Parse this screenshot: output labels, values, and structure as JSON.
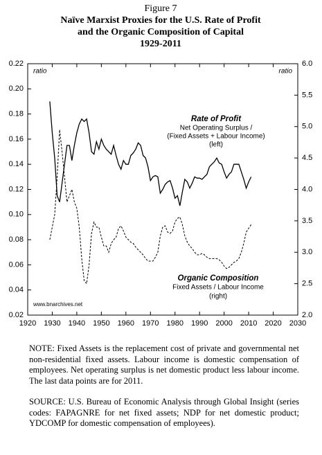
{
  "chart_data": {
    "type": "line",
    "figure_label": "Figure 7",
    "title": [
      "Naïve Marxist Proxies for the U.S. Rate of Profit",
      "and the Organic Composition of Capital"
    ],
    "subtitle": "1929-2011",
    "y_label": "ratio",
    "y2_label": "ratio",
    "annotations": [
      "Rate of Profit",
      "Net Operating Surplus /",
      "(Fixed Assets + Labour Income)",
      "(left)",
      "Organic Composition",
      "Fixed Assets / Labour Income",
      "(right)",
      "www.bnarchives.net"
    ],
    "x": [
      1929,
      1930,
      1931,
      1932,
      1933,
      1934,
      1935,
      1936,
      1937,
      1938,
      1939,
      1940,
      1941,
      1942,
      1943,
      1944,
      1945,
      1946,
      1947,
      1948,
      1949,
      1950,
      1951,
      1952,
      1953,
      1954,
      1955,
      1956,
      1957,
      1958,
      1959,
      1960,
      1961,
      1962,
      1963,
      1964,
      1965,
      1966,
      1967,
      1968,
      1969,
      1970,
      1971,
      1972,
      1973,
      1974,
      1975,
      1976,
      1977,
      1978,
      1979,
      1980,
      1981,
      1982,
      1983,
      1984,
      1985,
      1986,
      1987,
      1988,
      1989,
      1990,
      1991,
      1992,
      1993,
      1994,
      1995,
      1996,
      1997,
      1998,
      1999,
      2000,
      2001,
      2002,
      2003,
      2004,
      2005,
      2006,
      2007,
      2008,
      2009,
      2010,
      2011
    ],
    "series": [
      {
        "name": "Rate of Profit",
        "color": "#000000",
        "dash": "solid",
        "axis": "y",
        "values": [
          0.19,
          0.165,
          0.145,
          0.115,
          0.11,
          0.125,
          0.14,
          0.155,
          0.155,
          0.143,
          0.155,
          0.165,
          0.172,
          0.176,
          0.174,
          0.176,
          0.165,
          0.15,
          0.148,
          0.158,
          0.152,
          0.16,
          0.155,
          0.152,
          0.15,
          0.148,
          0.155,
          0.147,
          0.14,
          0.136,
          0.143,
          0.14,
          0.14,
          0.147,
          0.149,
          0.152,
          0.157,
          0.155,
          0.147,
          0.145,
          0.138,
          0.127,
          0.13,
          0.131,
          0.13,
          0.117,
          0.12,
          0.124,
          0.126,
          0.127,
          0.121,
          0.113,
          0.115,
          0.107,
          0.118,
          0.128,
          0.126,
          0.121,
          0.125,
          0.13,
          0.129,
          0.129,
          0.128,
          0.13,
          0.132,
          0.138,
          0.14,
          0.142,
          0.145,
          0.141,
          0.14,
          0.134,
          0.129,
          0.132,
          0.134,
          0.14,
          0.14,
          0.14,
          0.134,
          0.128,
          0.121,
          0.126,
          0.13
        ]
      },
      {
        "name": "Organic Composition",
        "color": "#000000",
        "dash": "dashed",
        "axis": "y2",
        "values": [
          3.2,
          3.4,
          3.6,
          4.2,
          4.95,
          4.6,
          4.2,
          3.8,
          3.9,
          4.0,
          3.8,
          3.7,
          3.4,
          2.9,
          2.55,
          2.5,
          2.8,
          3.3,
          3.48,
          3.4,
          3.4,
          3.24,
          3.1,
          3.1,
          3.0,
          3.14,
          3.2,
          3.24,
          3.38,
          3.42,
          3.34,
          3.24,
          3.2,
          3.16,
          3.14,
          3.08,
          3.04,
          3.0,
          2.96,
          2.9,
          2.86,
          2.86,
          2.86,
          2.92,
          3.0,
          3.26,
          3.4,
          3.42,
          3.32,
          3.3,
          3.34,
          3.48,
          3.54,
          3.56,
          3.44,
          3.26,
          3.16,
          3.1,
          3.06,
          3.0,
          2.96,
          2.96,
          2.98,
          2.96,
          2.92,
          2.9,
          2.9,
          2.9,
          2.9,
          2.88,
          2.84,
          2.78,
          2.74,
          2.76,
          2.8,
          2.84,
          2.86,
          2.9,
          3.0,
          3.14,
          3.32,
          3.38,
          3.44
        ]
      }
    ],
    "xlim": [
      1920,
      2030
    ],
    "xticks": [
      1920,
      1930,
      1940,
      1950,
      1960,
      1970,
      1980,
      1990,
      2000,
      2010,
      2020,
      2030
    ],
    "ylim": [
      0.02,
      0.22
    ],
    "yticks": [
      0.02,
      0.04,
      0.06,
      0.08,
      {
        "value": 0.1,
        "label": "0.10"
      },
      0.12,
      0.14,
      0.16,
      0.18,
      {
        "value": 0.2,
        "label": "0.20"
      },
      0.22
    ],
    "y2lim": [
      2,
      6
    ],
    "y2ticks": [
      {
        "value": 2,
        "label": "2.0"
      },
      2.5,
      {
        "value": 3,
        "label": "3.0"
      },
      3.5,
      {
        "value": 4,
        "label": "4.0"
      },
      4.5,
      {
        "value": 5,
        "label": "5.0"
      },
      5.5,
      {
        "value": 6,
        "label": "6.0"
      }
    ],
    "grid": false
  },
  "note": "NOTE: Fixed Assets is the replacement cost of private and governmental net non-residential fixed assets. Labour income is domestic compensation of employees. Net operating surplus is net domestic product less labour income. The last data points are for 2011.",
  "source": "SOURCE: U.S. Bureau of Economic Analysis through Global Insight (series codes: FAPAGNRE for net fixed assets; NDP for net domestic product; YDCOMP for domestic compensation of employees)."
}
